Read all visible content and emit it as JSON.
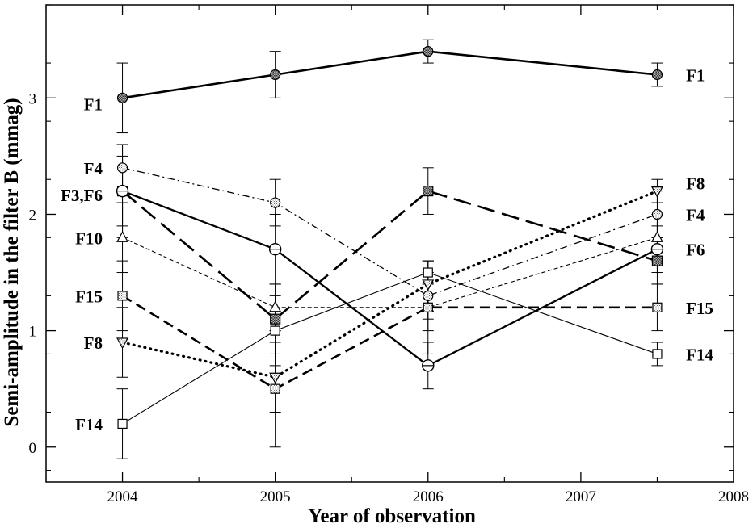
{
  "chart_data": {
    "type": "line",
    "title": "",
    "xlabel": "Year of observation",
    "ylabel": "Semi-amplitude in the filter B (mmag)",
    "xlim": [
      2003.5,
      2008
    ],
    "ylim": [
      -0.3,
      3.8
    ],
    "x_ticks": [
      2004,
      2005,
      2006,
      2007,
      2008
    ],
    "x_tick_labels": [
      "2004",
      "2005",
      "2006",
      "2007",
      "2008"
    ],
    "y_ticks": [
      0,
      1,
      2,
      3
    ],
    "y_tick_labels": [
      "0",
      "1",
      "2",
      "3"
    ],
    "grid": false,
    "legend": "none",
    "series": [
      {
        "name": "F1",
        "line": "solid-thick",
        "marker": "circle-dark",
        "points": [
          {
            "x": 2004,
            "y": 3.0,
            "err": 0.3
          },
          {
            "x": 2005,
            "y": 3.2,
            "err": 0.2
          },
          {
            "x": 2006,
            "y": 3.4,
            "err": 0.1
          },
          {
            "x": 2007.5,
            "y": 3.2,
            "err": 0.1
          }
        ]
      },
      {
        "name": "F4",
        "line": "dash-dot",
        "marker": "circle-dotted",
        "points": [
          {
            "x": 2004,
            "y": 2.4,
            "err": 0.2
          },
          {
            "x": 2005,
            "y": 2.1,
            "err": 0.2
          },
          {
            "x": 2006,
            "y": 1.3,
            "err": 0.2
          },
          {
            "x": 2007.5,
            "y": 2.0,
            "err": 0.2
          }
        ]
      },
      {
        "name": "F3",
        "line": "long-dash",
        "marker": "square-dark",
        "points": [
          {
            "x": 2004,
            "y": 2.2,
            "err": 0.3
          },
          {
            "x": 2005,
            "y": 1.1,
            "err": 0.3
          },
          {
            "x": 2006,
            "y": 2.2,
            "err": 0.2
          },
          {
            "x": 2007.5,
            "y": 1.6,
            "err": 0.2
          }
        ]
      },
      {
        "name": "F6",
        "line": "solid",
        "marker": "circle-cross",
        "points": [
          {
            "x": 2004,
            "y": 2.2,
            "err": 0.4
          },
          {
            "x": 2005,
            "y": 1.7,
            "err": 0.3
          },
          {
            "x": 2006,
            "y": 0.7,
            "err": 0.2
          },
          {
            "x": 2007.5,
            "y": 1.7,
            "err": 0.2
          }
        ]
      },
      {
        "name": "F10",
        "line": "short-dash",
        "marker": "triangle-up",
        "points": [
          {
            "x": 2004,
            "y": 1.8,
            "err": 0.3
          },
          {
            "x": 2005,
            "y": 1.2,
            "err": 0.2
          },
          {
            "x": 2006,
            "y": 1.2,
            "err": 0.2
          },
          {
            "x": 2007.5,
            "y": 1.8,
            "err": 0.2
          }
        ]
      },
      {
        "name": "F15",
        "line": "medium-dash",
        "marker": "square-dotted",
        "points": [
          {
            "x": 2004,
            "y": 1.3,
            "err": 0.3
          },
          {
            "x": 2005,
            "y": 0.5,
            "err": 0.5
          },
          {
            "x": 2006,
            "y": 1.2,
            "err": 0.4
          },
          {
            "x": 2007.5,
            "y": 1.2,
            "err": 0.2
          }
        ]
      },
      {
        "name": "F8",
        "line": "dotted",
        "marker": "triangle-down",
        "points": [
          {
            "x": 2004,
            "y": 0.9,
            "err": 0.3
          },
          {
            "x": 2005,
            "y": 0.6,
            "err": 0.3
          },
          {
            "x": 2006,
            "y": 1.4,
            "err": 0.2
          },
          {
            "x": 2007.5,
            "y": 2.2,
            "err": 0.1
          }
        ]
      },
      {
        "name": "F14",
        "line": "thin-solid",
        "marker": "square-open",
        "points": [
          {
            "x": 2004,
            "y": 0.2,
            "err": 0.3
          },
          {
            "x": 2005,
            "y": 1.0,
            "err": 0.3
          },
          {
            "x": 2006,
            "y": 1.5,
            "err": 0.1
          },
          {
            "x": 2007.5,
            "y": 0.8,
            "err": 0.1
          }
        ]
      }
    ],
    "labels_left": [
      {
        "text": "F1",
        "y": 2.95
      },
      {
        "text": "F4",
        "y": 2.4
      },
      {
        "text": "F3,F6",
        "y": 2.17
      },
      {
        "text": "F10",
        "y": 1.8
      },
      {
        "text": "F15",
        "y": 1.3
      },
      {
        "text": "F8",
        "y": 0.9
      },
      {
        "text": "F14",
        "y": 0.2
      }
    ],
    "labels_right": [
      {
        "text": "F1",
        "y": 3.2
      },
      {
        "text": "F8",
        "y": 2.27
      },
      {
        "text": "F4",
        "y": 2.0
      },
      {
        "text": "F6",
        "y": 1.7
      },
      {
        "text": "F15",
        "y": 1.2
      },
      {
        "text": "F14",
        "y": 0.8
      }
    ]
  }
}
